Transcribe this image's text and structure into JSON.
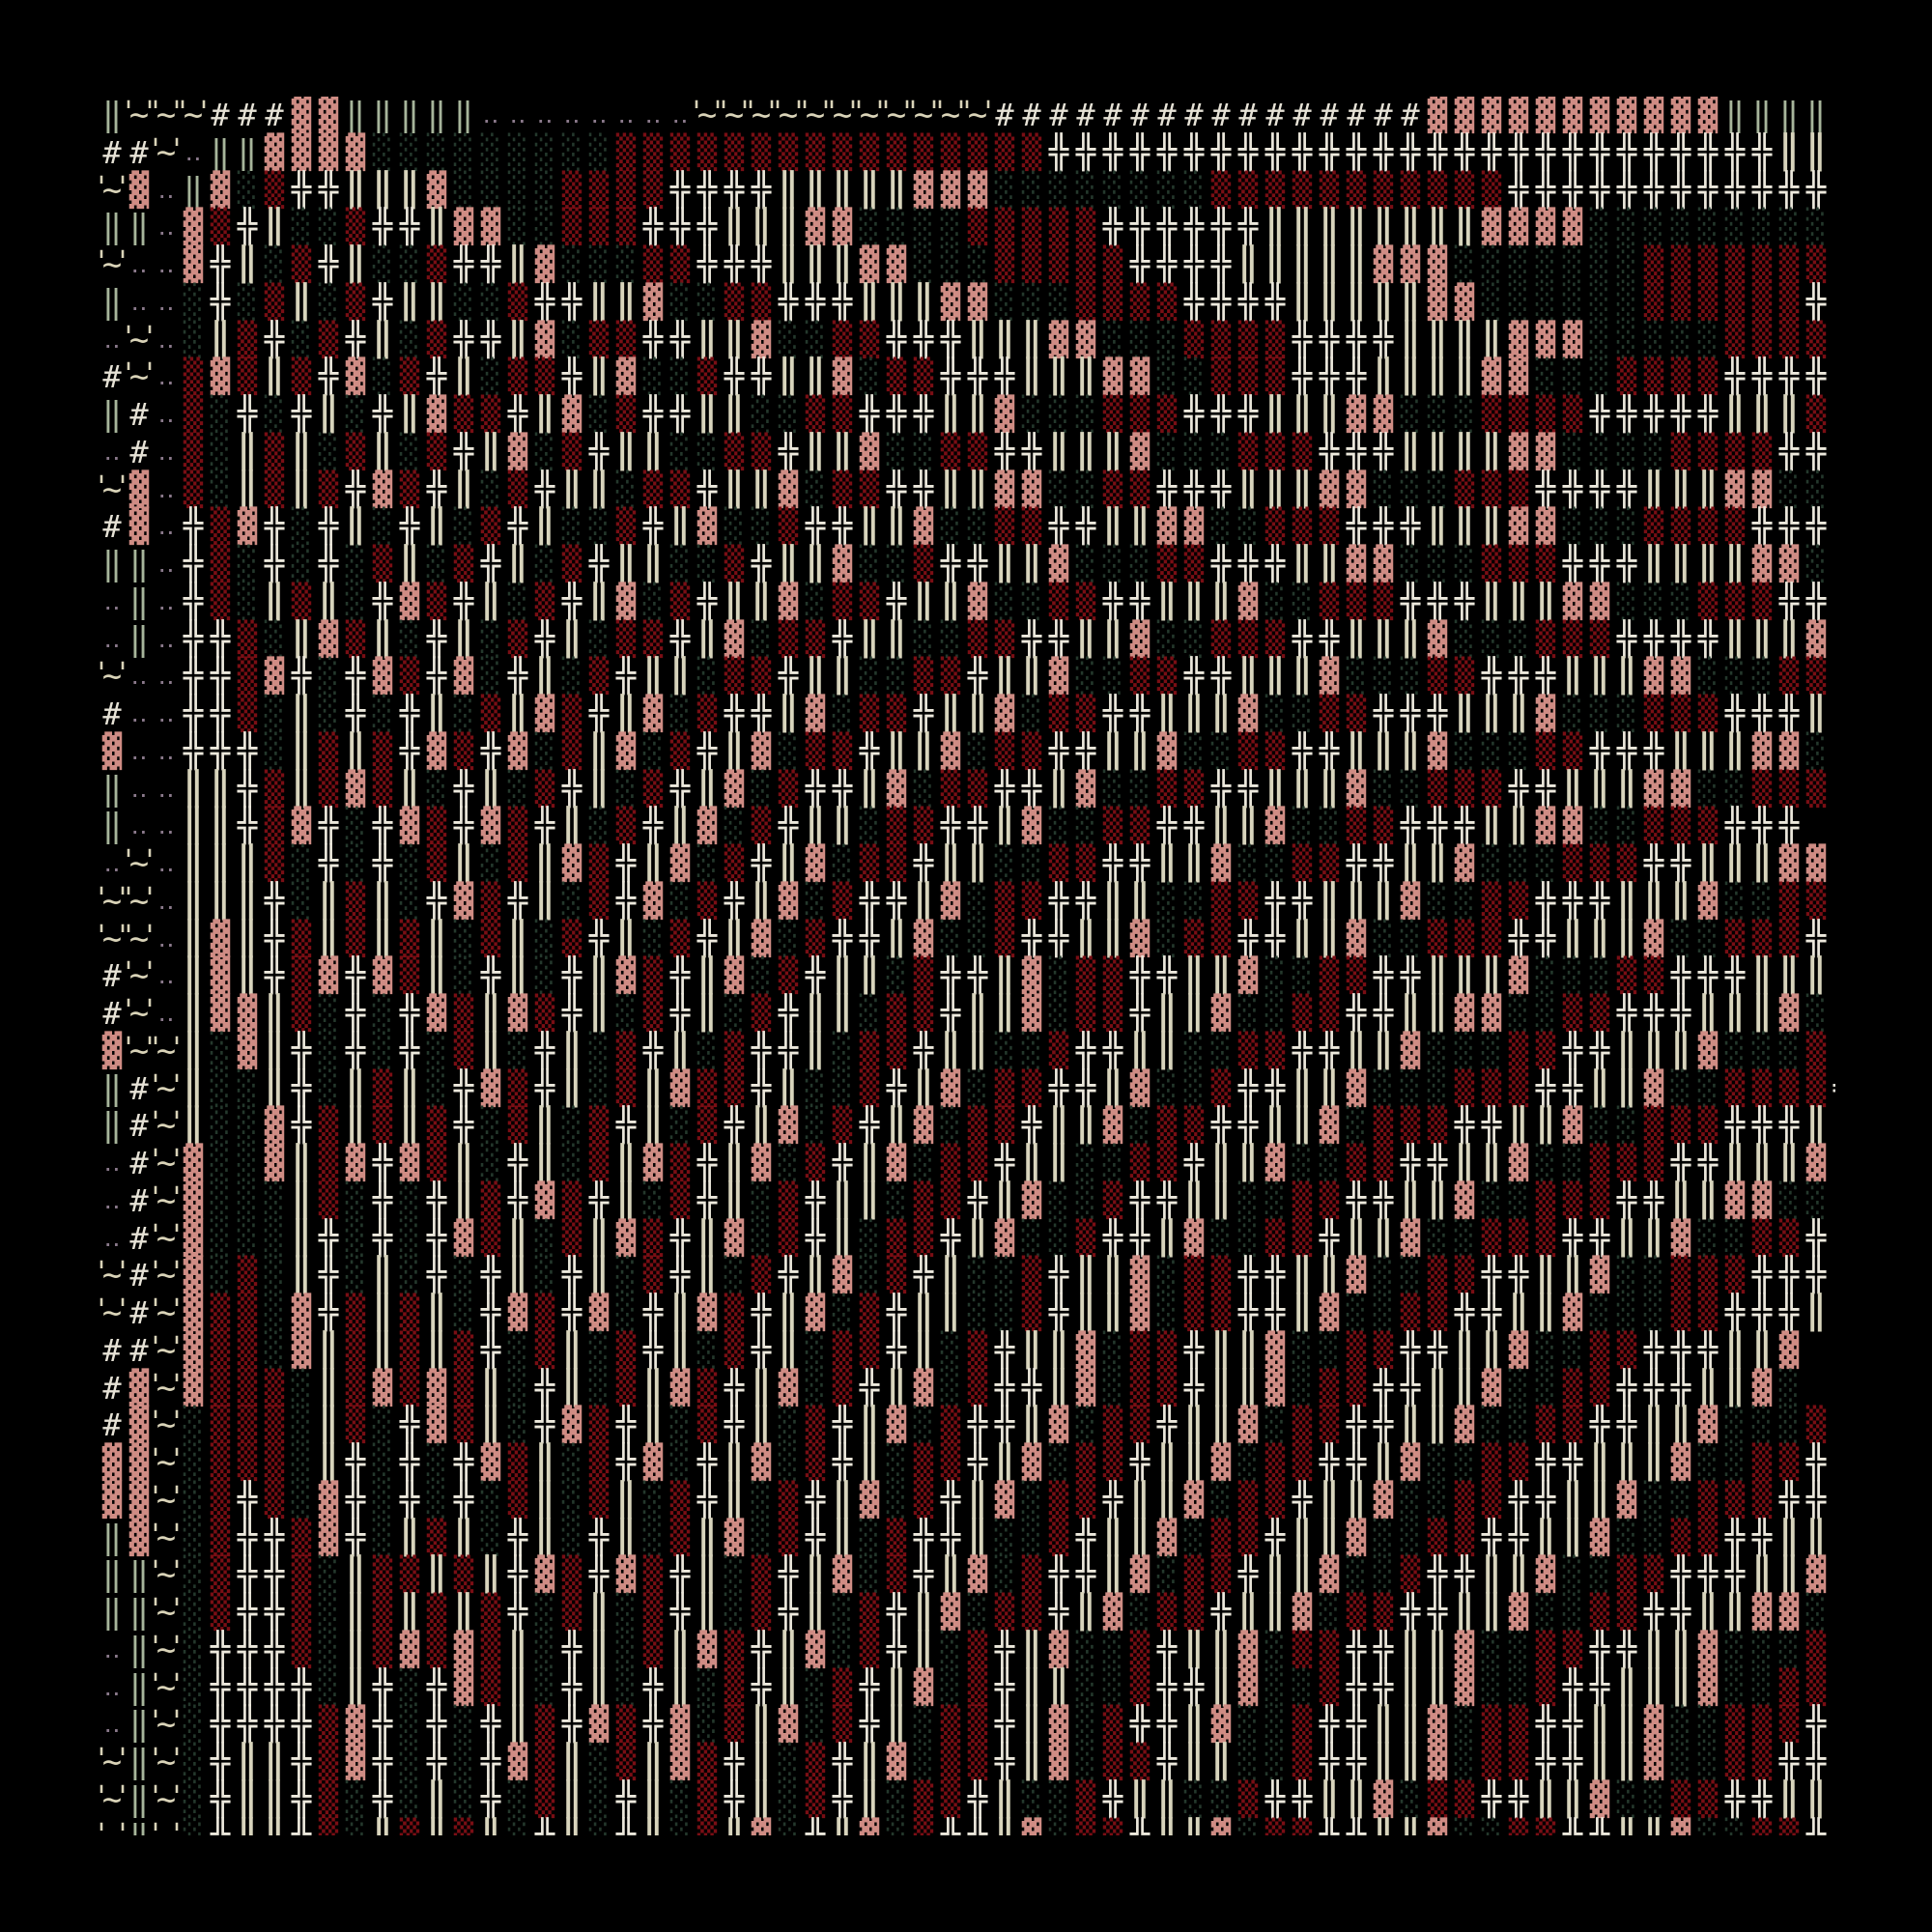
{
  "palette": {
    "‖": "#a7b59b",
    "~": "#d9d3b8",
    "#": "#e6e2d6",
    "‥": "#8b7a8c",
    "▓": "#cf8c84",
    "░": "#24382c",
    "▒": "#7a0e14",
    "╬": "#ece8dc",
    "║": "#d8d4bc",
    "background": "#000000"
  },
  "rows": [
    "‖~~~###▓▓‖‖‖‖‖‥‥‥‥‥‥‥‥~~~~~~~~~~~################▓▓▓▓▓▓▓▓▓▓▓‖‖‖‖",
    "##~‥‖‖▓▓▓▓░░░░░░░░░▒▒▒▒▒▒▒▒▒▒▒▒▒▒▒▒╬╬╬╬╬╬╬╬╬╬╬╬╬╬╬╬╬╬╬╬╬╬╬╬╬╬╬║║",
    "~▓‥‖▓░▒╬╬║║║▓░░░░▒▒▒▒╬╬╬╬║║║║║▓▓▓░░░░░░░░▒▒▒▒▒▒▒▒▒▒▒╬╬╬╬╬╬╬╬╬╬╬╬",
    "‖‖‥▓▒╬║░░▒╬╬║▓▓░░▒▒▒╬╬╬║║║▓▓░░░░▒▒▒▒▒╬╬╬╬╬╬║║║║║║║║▓▓▓▓░░░░░░░░░",
    "~‥‥▓╬║░▒╬║░░▒╬╬║▓░░░▒▒╬╬╬║║║▓▓░░░▒▒▒▒▒╬╬╬╬║║║║║▓▓▓░░░░░░░▒▒▒▒▒▒▒",
    "‖‥‥░╬░▒║░▒╬║║░░▒╬╬║║▓░░▒▒╬╬╬║║║▓▓░░░▒▒▒▒╬╬╬╬║║║║║▓▓░░░░░░▒▒▒▒▒▒╬",
    "‥~‥░║▒╬░▒╬║░▒╬╬║▓░▒▒╬╬║║▓░░▒▒╬╬╬║║║▓▓░░░▒▒▒▒╬╬╬╬║║║║▓▓▓░░░░░▒▒▒▒",
    "#~‥▒▓▒║▒╬▓░▒╬║░▒▒╬║▓░░▒╬╬║║▓░▒▒╬╬╬║║║▓▓░░▒▒▒╬╬╬║║║║▓▓░░░▒▒▒▒╬╬╬╬",
    "‖#‥▒░╬░╬║░╬║▓▒▒╬║▓░▒╬╬║║░░▒▒╬╬╬║║▓░░░▒▒▒╬╬╬║║║▓▓░░░▒▒▒▒╬╬╬╬╬║║║▒",
    "‥#‥▒░║▒║░▒║░▒╬║▓░▒╬║║░░▒▒╬║║▓░░▒▒╬╬║║║▓░░░▒▒▒╬╬╬║║║║▓▓░░░░▒▒▒▒╬╬",
    "~▓‥▒░║▒║▒╬▓▒╬║░▒╬║║░▒▒╬║║▓░▒▒╬╬║║▓▓░░▒▒╬╬╬║║║▓▓░░░▒▒▒╬╬╬╬║║║▓▓░░",
    "#▓‥╬▒▓╬░╬║░╬║░▒╬║░░▒╬║▓░░▒╬╬║║▓░░▒▒╬╬║║▓▓░░▒▒▒╬╬╬║║║▓▓░░░▒▒▒▒╬╬╬",
    "‖‖‥╬▒░╬░╬░▒║░▒╬║░▒╬║║░░▒╬║║▓░░▒╬╬║║▓░░░▒▒╬╬╬║║▓▓░░░▒▒▒╬╬╬║║║║▓▓░",
    "‥‖‥╬▒░║▒║░╬▓▒╬║░▒╬║▓░▒╬║║▓░▒▒╬║║▓░░▒▒╬╬║║║▓░░▒▒▒╬╬╬║║║▓▓░░░▒▒▒╬╬",
    "‥‖‥╬╬▒░║▓▒║░╬║░▒╬║░▒▒╬║▓░▒▒╬║║░░▒▒╬╬║║▓░░▒▒▒╬╬║║║▓░░░▒▒▒╬╬╬╬║║║▓",
    "~‥‥╬╬▒▓╬░╬▓▒╬▓░╬║░▒╬║║░▒▒╬║║░░▒▒╬║║▓░░▒▒╬╬║║║▓░░░▒▒╬╬╬║║║▓▓░░░▒▒",
    "#‥‥╬╬▒░║░╬░╬║░▒║▓▒╬║▓░▒╬╬║▓░▒▒╬║║▓░▒▒╬╬║║║▓░░▒▒╬╬╬║║║▓░░░▒▒▒╬╬╬║",
    "▓‥‥╬╬╬░║▒║▒╬▓▒╬▓░▒║▓░▒╬║▓░▒▒╬║║▓░▒▒╬╬║║▓░░▒▒╬╬║║║▓░░░▒▒╬╬╬║║║▓▓░",
    "‖‥‥║║╬▒║▒▓▒║░╬║░▒╬║░▒╬║▓░▒╬╬║▓░▒▒╬╬║▓░░▒▒╬╬║║║▓░░▒▒▒╬╬║║║▓▓░░▒▒▒",
    "‖‥‥║║╬▒▓╬░╬▓▒╬▓▒╬║░▒╬║▓░▒╬║║░▒▒╬╬║▓░░▒▒╬╬║║▓░░▒▒╬╬╬║║▓▓░░▒▒▒╬╬╬",
    "‥~‥║║║▒░╬░╬░▒║░▒║▓▒╬║▓░▒╬║▓░▒▒╬║║░░▒▒╬╬║║▓░░▒▒╬╬║║▓░░░▒▒▒╬╬║║║▓▓",
    "~~‥║║║╬░║▒║░╬▓▒╬║░▒╬▓░▒╬║▓░▒╬╬║▓░▒▒╬╬║║░░▒▒╬╬║║║▓░░▒▒╬╬╬║║║▓░░▒▒",
    "~~‥║▓║╬▒║▒║▒║░▒║░▒╬║░▒╬║▓░▒╬╬║▓░░▒╬╬║║▓░▒▒╬╬║║▓░░▒▒▒╬╬║║║▓░░▒▒▒╬",
    "#~‥║▓║╬▒▓╬▓▒║░╬║░╬║▓▒╬║▓░▒╬║║░▒╬╬║▓░▒▒╬╬║║▓░░▒▒╬╬║║║▓░░░▒▒╬╬╬║║║",
    "#~‥║▓▓║▒░╬░╬▓▒║▓▒╬║░▒╬║░▒╬║║░▒▒╬║║▓░▒▒╬║║▓░░▒▒╬╬║║▓▓░░▒▒╬╬╬║║║▓░",
    "▓~~║░▓║╬░╬░╬░▒║░╬║░▒╬║░▒╬╬║░▒▒╬║║░░▒╬╬║║░░▒▒╬╬║║▓░░░▒▒╬╬║║║▓░░░▒",
    "‖#~║░░║╬░║▒║░╬▓▒╬║░▒║▓▒▒╬║░░▒╬║▓░▒▒╬╬║▓░░▒╬╬║║▓░░░▒▒▒╬╬║║▓░░▒▒▒▒╬",
    "‖#~║░░▓╬▒║▒║▒╬░▒║░▒╬║░▒╬║▓░▒╬║▓░▒▒╬║║▓░▒▒╬╬║║▓░▒▒▒╬╬║║▓░░▒▒▒╬╬╬║",
    "‥#~▓░░▓║▒▓╬▓▒║░╬║░▒║▓▒╬║▓░▒╬║▓░▒▒╬║║░░▒▒╬║║▓░░▒▒╬╬║║▓░░▒▒▒╬╬║║║▓",
    "‥#~▓░░░║▒░╬░╬║▒╬▓▒╬║░▒╬║░▒╬║║░▒▒╬║▓░░▒╬╬║║░░▒▒╬╬║║▓░░▒▒▒╬╬║║▓▓░░",
    "‥#~▓░░░║╬░╬░╬▓▒║░▒║▓▒╬║▓░▒╬║░▒▒╬║▓░░▒╬╬║▓░░▒▒╬║║▓░░▒▒▒╬╬║║▓░░▒▒╬",
    "~#~▓░▒░║╬░║░╬░╬║░╬║░▒╬║░▒╬║▓░▒╬║░░▒╬║║▓░▒▒╬╬║║▓░░▒▒╬╬║║▓░░▒▒▒╬╬╬",
    "~#~▓▒▒░▓╬▒║▒║░╬▓▒╬▓░╬║▓▒╬║▓░▒╬║║░░▒╬║║▓░▒▒╬╬║▓░░▒▒╬╬║║▓░░░▒▒╬╬╬║",
    "##~▓▒▒░▓║▒║▒║▒╬░▒║░▒╬║░▒╬║░▒▒╬║░▒╬║║▓░▒▒╬║║▓░░▒▒╬╬║║▓░░▒▒╬╬╬║║▓",
    "#▓~▓▒▒▒░║▒▓▒▓▒║░╬║░▒║▓▒╬║▓░▒╬║▓░▒╬╬║▓░▒▒╬║║▓░▒▒╬╬║║▓░░▒▒╬╬╬║║▓░",
    "#▓~░▒▒▒░║▒░╬▓▒║░╬▓▒╬║░▒╬║░▒╬║▓░▒╬╬║▓░▒▒╬║║▓░▒▒╬╬║║▓░░▒▒╬╬║║▓░░░▒",
    "▓▓~░▒▒▒░║╬░╬░╬▓▒║░▒╬▓░╬║▓░▒╬║░▒▒╬║▓░▒▒╬║║▓░▒▒╬╬║▓░░▒▒╬╬║║║▓░░▒▒╬",
    "▓▓~░▒╬▒░▓╬░╬░╬░▒║░▒║░▒╬║░▒╬║▓░▒╬║▓░▒▒╬║║▓░▒▒╬║║▓░░▒▒╬╬║║▓░░▒▒▒╬╬",
    "‖▓~░▒╬╬▒▓╬░║▒║░╬║░╬║░▒║▓░▒╬║░▒╬╬║░░▒╬║║▓░▒▒╬║║▓░░▒▒╬╬║║▓░░▒▒╬╬║║",
    "‖‖~░▒╬╬▒░║▒▒║▒║╬▓▒╬▓▒╬║░▒╬║▓░▒╬║▓░▒╬╬║▓░▒▒╬║║▓░░▒╬╬║║▓░░▒▒╬╬╬║║▓",
    "‖‖~░▒╬╬▒░║▒║▒║▒╬░▒║░▒╬║░▒╬║░▒╬║▓░▒▒╬║▓░▒▒╬║║▓░▒▒╬╬║║▓░░▒▒╬╬║║▓▓░",
    "‥‖~░╬╬╬▒░║▒▓▒▓▒║░╬║░▒║▓▒╬║▓░▒╬║░▒╬║▓░░▒╬║║▓░▒▒╬╬║║▓░░▒▒╬╬║║▓░░░▒",
    "‥‖~░╬╬╬╬░║╬░╬▓▒║░╬║░╬║░▒╬║░▒╬║▓░▒╬║║░░▒╬╬║▓░░▒╬╬║║▓░░▒╬╬║║║▓░░▒▒",
    "‥‖~░╬╬╬╬▒▓╬░╬░╬║▒╬▓▒╬▓░▒║▓░▒╬║░▒▒╬║▓░▒╬╬║▓░░▒╬╬║║▓░▒▒╬╬║║▓░░▒▒▒╬",
    "~‖~░╬║║╬▒▓╬░╬░╬▓▒║░▒║▓▒╬║░▒╬║▓░▒▒╬║▓░▒▒╬║║░░▒╬╬║║▓░▒▒╬╬║║▓░░▒▒╬╬",
    "~‖~░╬║║╬▒░╬░║░╬░▒║░╬║░▒╬║░▒╬║░▒▒╬║░░▒╬║║░░▒╬╬║║▓░▒▒╬╬║║▓░░▒▒╬╬║║",
    "~‖~░╬║║╬▒░║▒║▒║░╬║░╬║░▒║▓░╬║▓░▒╬╬║▓░▒▒╬║║▓░▒▒╬╬║║▓░░▒▒╬╬║║▓░░▒▒╬"
  ]
}
